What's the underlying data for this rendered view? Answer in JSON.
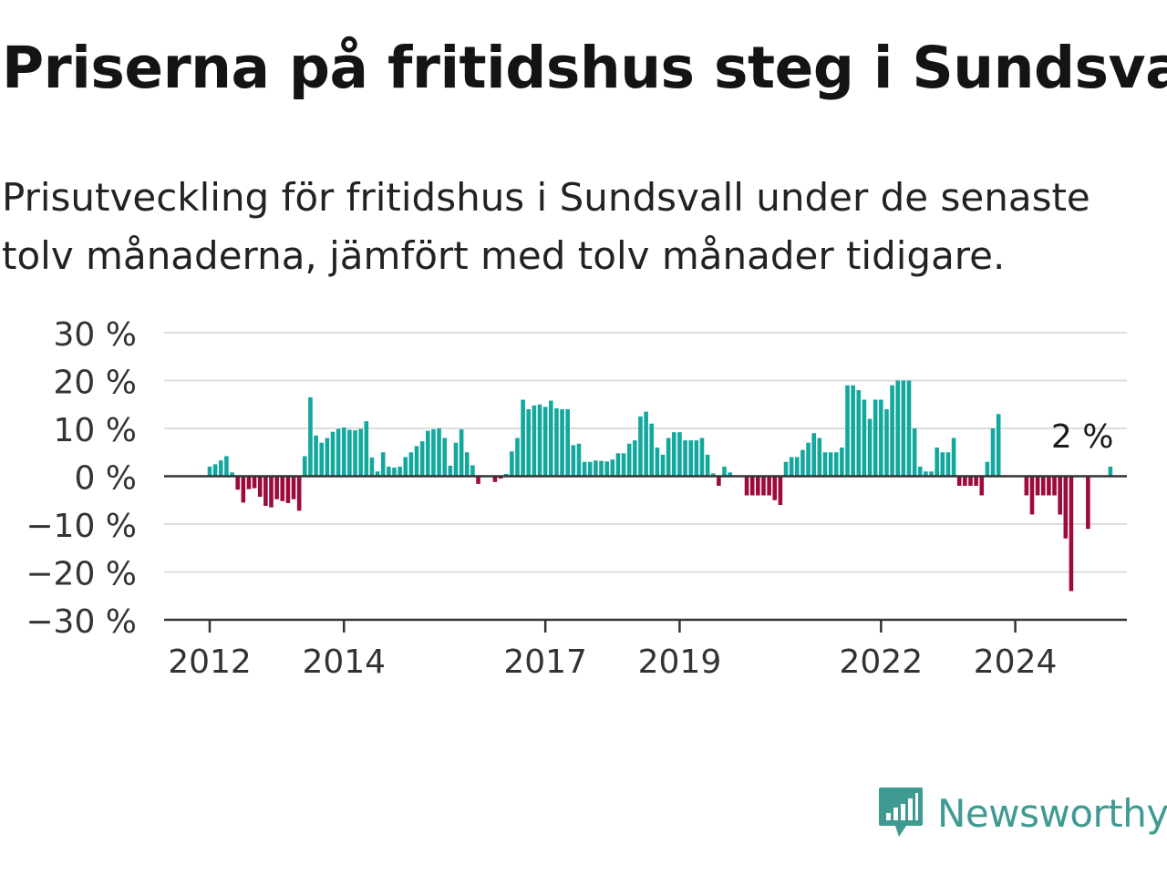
{
  "header": {
    "title": "Priserna på fritidshus steg i Sundsvall",
    "subtitle": "Prisutveckling för fritidshus i Sundsvall under de senaste tolv månaderna, jämfört med tolv månader tidigare."
  },
  "brand": {
    "name": "Newsworthy",
    "icon": "newsworthy-logo-icon"
  },
  "colors": {
    "positive": "#13a89e",
    "negative": "#9c0b3b",
    "grid": "#dddddd",
    "axis": "#333333"
  },
  "chart_data": {
    "type": "bar",
    "title": "Priserna på fritidshus steg i Sundsvall",
    "subtitle": "Prisutveckling för fritidshus i Sundsvall under de senaste tolv månaderna, jämfört med tolv månader tidigare.",
    "unit": "%",
    "x_start": "2012-01",
    "x_ticks": [
      {
        "label": "2012",
        "date": "2012-01"
      },
      {
        "label": "2014",
        "date": "2014-01"
      },
      {
        "label": "2017",
        "date": "2017-01"
      },
      {
        "label": "2019",
        "date": "2019-01"
      },
      {
        "label": "2022",
        "date": "2022-01"
      },
      {
        "label": "2024",
        "date": "2024-01"
      }
    ],
    "y_ticks": [
      {
        "label": "30 %",
        "value": 30
      },
      {
        "label": "20 %",
        "value": 20
      },
      {
        "label": "10 %",
        "value": 10
      },
      {
        "label": "0 %",
        "value": 0
      },
      {
        "label": "−10 %",
        "value": -10
      },
      {
        "label": "−20 %",
        "value": -20
      },
      {
        "label": "−30 %",
        "value": -30
      }
    ],
    "ylim": [
      -30,
      30
    ],
    "grid": true,
    "annotation": {
      "text": "2 %",
      "date": "2025-01"
    },
    "values": [
      2,
      2.5,
      3.3,
      4.2,
      0.8,
      -2.8,
      -5.5,
      -2.7,
      -2.5,
      -4.3,
      -6.2,
      -6.5,
      -4.8,
      -5.2,
      -5.6,
      -4.8,
      -7.2,
      4.2,
      16.5,
      8.5,
      7,
      8,
      9.3,
      9.9,
      10.2,
      9.7,
      9.6,
      9.9,
      11.5,
      3.9,
      1,
      5,
      2,
      1.8,
      2,
      4,
      5,
      6.3,
      7.3,
      9.5,
      9.8,
      10,
      8,
      2.2,
      7,
      9.8,
      5,
      2.3,
      -1.6,
      0,
      0,
      -1.2,
      -0.5,
      0.5,
      5.2,
      8,
      16,
      14,
      14.8,
      15,
      14.5,
      15.8,
      14.2,
      14,
      14,
      6.5,
      6.8,
      3,
      3,
      3.3,
      3.2,
      3.1,
      3.5,
      4.8,
      4.8,
      6.8,
      7.5,
      12.5,
      13.5,
      11,
      6,
      4.5,
      8,
      9.2,
      9.2,
      7.5,
      7.5,
      7.5,
      8,
      4.5,
      0.6,
      -2,
      2,
      0.8,
      0,
      0,
      -4,
      -4,
      -4,
      -4,
      -4,
      -5,
      -6,
      3,
      4,
      4,
      5.5,
      7,
      9,
      8,
      5,
      5,
      5,
      6,
      19,
      19,
      18,
      16,
      12,
      16,
      16,
      14,
      19,
      20,
      20,
      20,
      10,
      2,
      1,
      1,
      6,
      5,
      5,
      8,
      -2,
      -2,
      -2,
      -2,
      -4,
      3,
      10,
      13,
      0,
      0,
      0,
      0,
      -4,
      -8,
      -4,
      -4,
      -4,
      -4,
      -8,
      -13,
      -24,
      0,
      0,
      -11,
      0,
      0,
      0,
      2
    ]
  }
}
